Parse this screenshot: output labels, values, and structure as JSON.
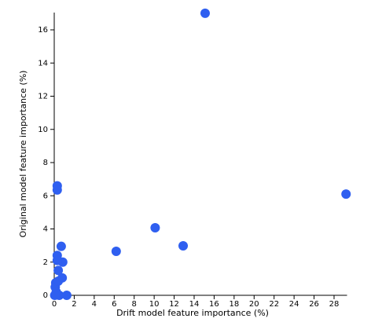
{
  "chart_data": {
    "type": "scatter",
    "x_label": "Drift model feature importance (%)",
    "y_label": "Original model feature importance (%)",
    "color": "#2f5ff0",
    "x": [
      15.1,
      29.2,
      10.1,
      12.9,
      6.2,
      0.3,
      0.3,
      0.7,
      0.85,
      0.3,
      0.4,
      0.8,
      0.15,
      0.1,
      0.2,
      0.5,
      1.25,
      0.05,
      0.4,
      0.3
    ],
    "y": [
      17.0,
      6.1,
      4.07,
      2.98,
      2.65,
      6.6,
      6.35,
      2.95,
      2.0,
      2.4,
      1.5,
      1.05,
      0.75,
      0.5,
      0.2,
      0.0,
      0.0,
      0.0,
      0.85,
      2.1
    ],
    "xlim": [
      0,
      29.3
    ],
    "ylim": [
      0,
      17.04
    ],
    "xticks": [
      0,
      2,
      4,
      6,
      8,
      10,
      12,
      14,
      16,
      18,
      20,
      22,
      24,
      26,
      28
    ],
    "yticks": [
      0,
      2,
      4,
      6,
      8,
      10,
      12,
      14,
      16
    ]
  }
}
